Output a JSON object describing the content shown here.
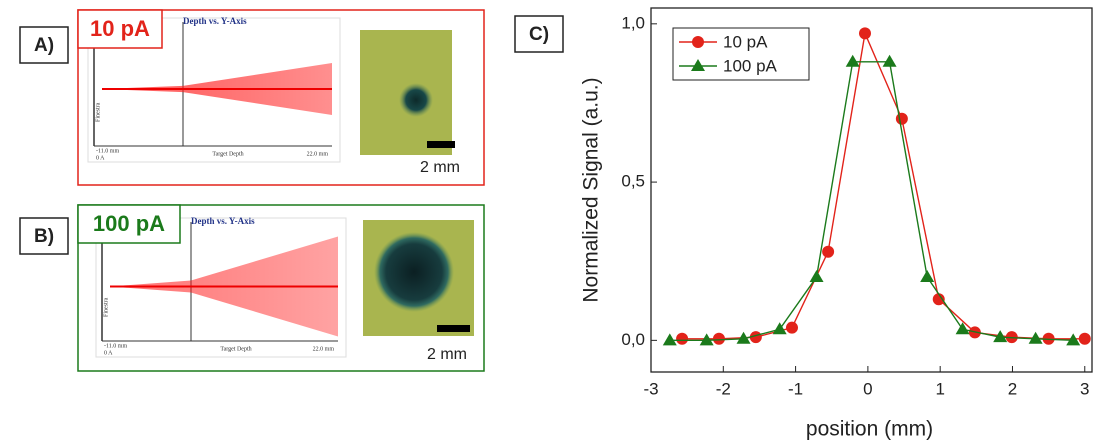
{
  "panels": [
    {
      "label": "A)",
      "current": "10 pA",
      "color": "#e2231a",
      "plot_title": "Depth vs. Y-Axis",
      "plot_xlabel": "Target Depth",
      "plot_origin": "0 A",
      "plot_left": "-11.0 mm",
      "plot_right": "22.0 mm",
      "plot_side": "Finestra",
      "scale": "2 mm"
    },
    {
      "label": "B)",
      "current": "100 pA",
      "color": "#1b7a1b",
      "plot_title": "Depth vs. Y-Axis",
      "plot_xlabel": "Target Depth",
      "plot_origin": "0 A",
      "plot_left": "-11.0 mm",
      "plot_right": "22.0 mm",
      "plot_side": "Finestra",
      "scale": "2 mm"
    }
  ],
  "chart_data": {
    "type": "line",
    "panel_label": "C)",
    "x_label": "position (mm)",
    "y_label": "Normalized Signal (a.u.)",
    "xlim": [
      -3,
      3.1
    ],
    "xticks": [
      -3,
      -2,
      -1,
      0,
      1,
      2,
      3
    ],
    "ylim": [
      -0.1,
      1.05
    ],
    "yticks": [
      {
        "value": 0,
        "label": "0,0"
      },
      {
        "value": 0.5,
        "label": "0,5"
      },
      {
        "value": 1,
        "label": "1,0"
      }
    ],
    "legend": "top-left",
    "series": [
      {
        "name": "10 pA",
        "color": "#e2231a",
        "marker": "circle",
        "x": [
          -2.57,
          -2.06,
          -1.55,
          -1.05,
          -0.55,
          -0.04,
          0.47,
          0.98,
          1.48,
          1.99,
          2.5,
          3.0
        ],
        "values": [
          0.005,
          0.005,
          0.01,
          0.04,
          0.28,
          0.97,
          0.7,
          0.13,
          0.025,
          0.01,
          0.005,
          0.005
        ]
      },
      {
        "name": "100 pA",
        "color": "#1b7a1b",
        "marker": "triangle",
        "x": [
          -2.74,
          -2.23,
          -1.72,
          -1.22,
          -0.71,
          -0.21,
          0.3,
          0.82,
          1.31,
          1.83,
          2.32,
          2.84
        ],
        "values": [
          0.0,
          0.0,
          0.005,
          0.035,
          0.2,
          0.88,
          0.88,
          0.2,
          0.035,
          0.01,
          0.005,
          0.0
        ]
      }
    ]
  }
}
